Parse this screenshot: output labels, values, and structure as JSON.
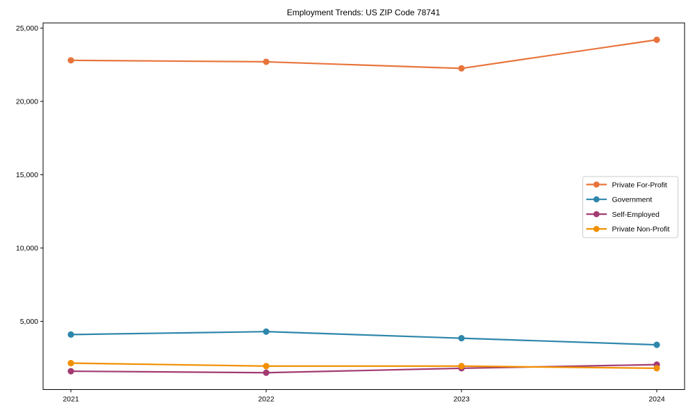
{
  "chart_data": {
    "type": "line",
    "title": "Employment Trends: US ZIP Code 78741",
    "xlabel": "",
    "ylabel": "",
    "x_labels": [
      "2021",
      "2022",
      "2023",
      "2024"
    ],
    "series": [
      {
        "name": "Private For-Profit",
        "color": "#E8743B",
        "values": [
          22800,
          22700,
          22250,
          24200
        ]
      },
      {
        "name": "Government",
        "color": "#2E86AB",
        "values": [
          4100,
          4300,
          3850,
          3400
        ]
      },
      {
        "name": "Self-Employed",
        "color": "#A23B72",
        "values": [
          1600,
          1500,
          1800,
          2050
        ]
      },
      {
        "name": "Private Non-Profit",
        "color": "#F18F01",
        "values": [
          2150,
          1950,
          1950,
          1800
        ]
      }
    ],
    "yticks": [
      5000,
      10000,
      15000,
      20000,
      25000
    ],
    "ytick_labels": [
      "5,000",
      "10,000",
      "15,000",
      "20,000",
      "25,000"
    ],
    "ylim": [
      350,
      25350
    ],
    "grid": false,
    "legend": {
      "position": "center right",
      "border_color": "#cccccc",
      "background": "#ffffff"
    },
    "axis_color": "#000000",
    "background": "#ffffff",
    "marker": "o"
  }
}
